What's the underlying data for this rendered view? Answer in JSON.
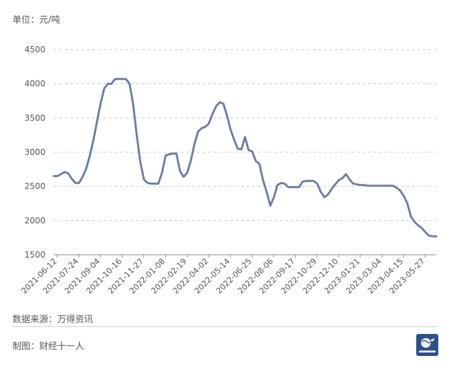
{
  "header": {
    "unit_label": "单位：元/吨"
  },
  "footer": {
    "source": "数据来源：万得资讯",
    "maker": "制图：财经十一人"
  },
  "logo": {
    "text": "财经十一人",
    "bg_color": "#2f4f8a"
  },
  "colors": {
    "line": "#6b7fa3",
    "grid": "#cccccc",
    "axis": "#555555"
  },
  "chart_data": {
    "type": "line",
    "title": "",
    "xlabel": "",
    "ylabel": "",
    "ylim": [
      1500,
      4500
    ],
    "yticks": [
      1500,
      2000,
      2500,
      3000,
      3500,
      4000,
      4500
    ],
    "xticks": [
      "2021-06-12",
      "2021-07-24",
      "2021-09-04",
      "2021-10-16",
      "2021-11-27",
      "2022-01-08",
      "2022-02-19",
      "2022-04-02",
      "2022-05-14",
      "2022-06-25",
      "2022-08-06",
      "2022-09-17",
      "2022-10-29",
      "2022-12-10",
      "2023-01-21",
      "2023-03-04",
      "2023-04-15",
      "2023-05-27"
    ],
    "grid": true,
    "series": [
      {
        "values": [
          2650,
          2650,
          2680,
          2710,
          2690,
          2610,
          2550,
          2550,
          2640,
          2760,
          2950,
          3180,
          3450,
          3720,
          3930,
          4000,
          4000,
          4070,
          4070,
          4070,
          4070,
          4000,
          3700,
          3250,
          2850,
          2600,
          2550,
          2540,
          2540,
          2540,
          2700,
          2950,
          2970,
          2980,
          2980,
          2720,
          2640,
          2700,
          2880,
          3120,
          3300,
          3350,
          3370,
          3420,
          3560,
          3670,
          3730,
          3710,
          3540,
          3330,
          3180,
          3050,
          3040,
          3220,
          3030,
          3010,
          2870,
          2830,
          2590,
          2420,
          2220,
          2340,
          2520,
          2550,
          2540,
          2490,
          2490,
          2490,
          2490,
          2570,
          2580,
          2580,
          2580,
          2540,
          2420,
          2340,
          2380,
          2460,
          2530,
          2590,
          2620,
          2680,
          2600,
          2540,
          2530,
          2520,
          2520,
          2510,
          2510,
          2510,
          2510,
          2510,
          2510,
          2510,
          2510,
          2480,
          2440,
          2360,
          2250,
          2060,
          1980,
          1930,
          1890,
          1830,
          1780,
          1770,
          1770
        ]
      }
    ]
  }
}
